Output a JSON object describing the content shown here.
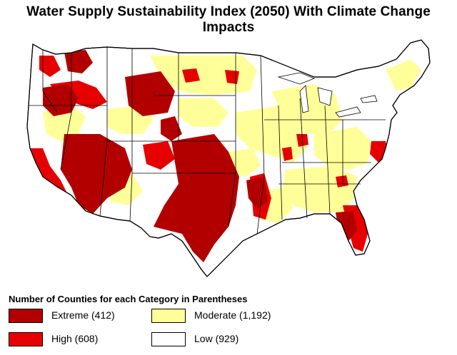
{
  "title": "Water Supply Sustainability Index (2050) With Climate Change Impacts",
  "legend": {
    "title": "Number of Counties for each Category in Parentheses",
    "items": [
      {
        "label": "Extreme (412)",
        "color": "#b20000"
      },
      {
        "label": "Moderate (1,192)",
        "color": "#ffff99"
      },
      {
        "label": "High (608)",
        "color": "#e60000"
      },
      {
        "label": "Low (929)",
        "color": "#ffffff"
      }
    ]
  },
  "colors": {
    "extreme": "#b20000",
    "high": "#e60000",
    "moderate": "#ffff99",
    "low": "#ffffff",
    "border": "#000000"
  }
}
